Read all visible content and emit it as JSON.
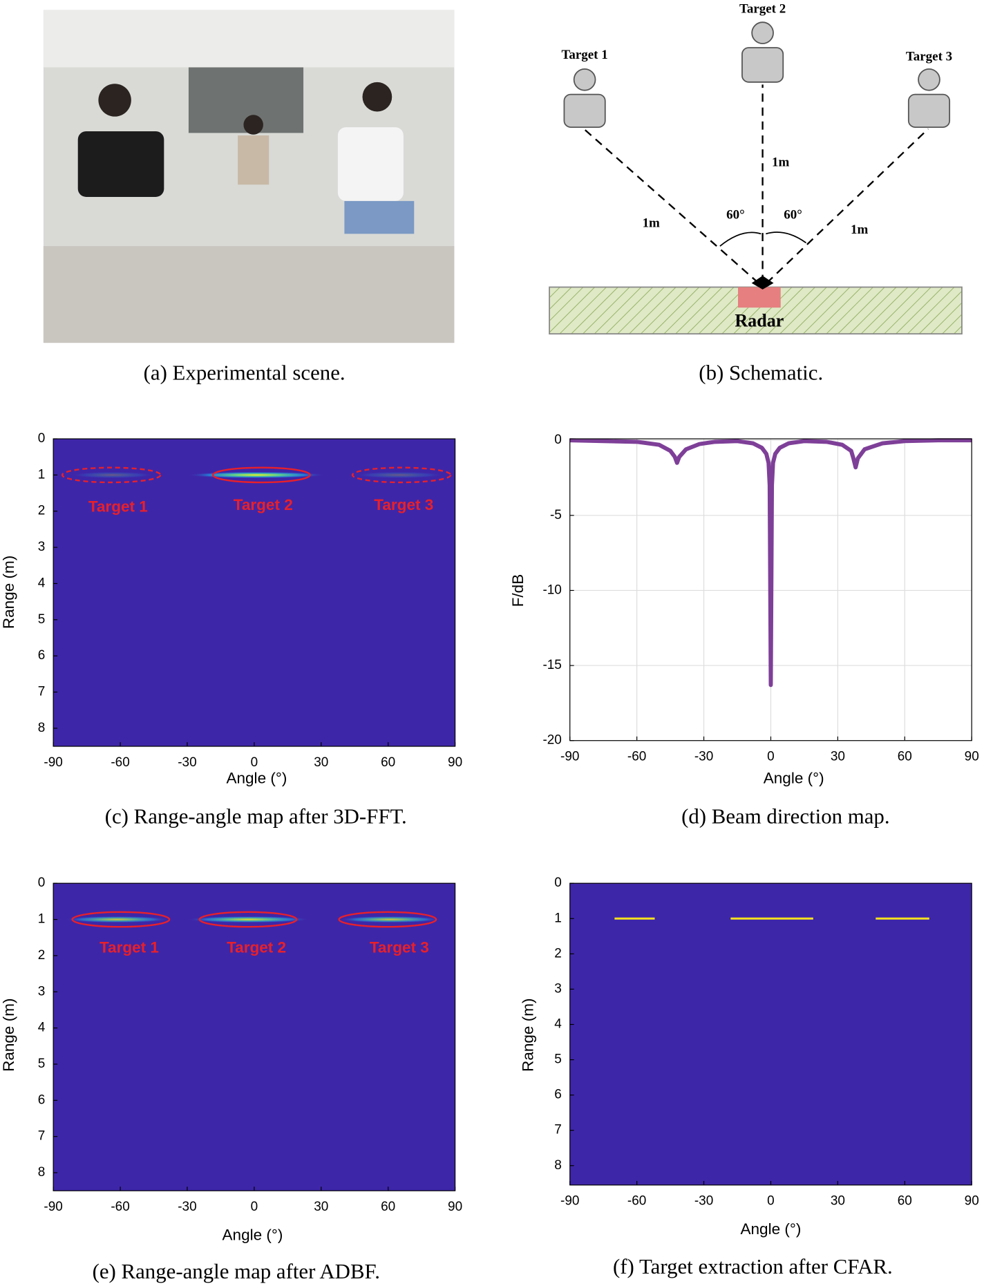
{
  "scene": {
    "caption": "(a) Experimental scene."
  },
  "schematic": {
    "targets": [
      "Target 1",
      "Target 2",
      "Target 3"
    ],
    "distances": [
      "1m",
      "1m",
      "1m"
    ],
    "angles": [
      "60°",
      "60°"
    ],
    "radar": "Radar",
    "caption": "(b) Schematic."
  },
  "chart_data": [
    {
      "type": "heatmap",
      "caption": "(c) Range-angle map after 3D-FFT.",
      "xlabel": "Angle (°)",
      "ylabel": "Range (m)",
      "xlim": [
        -90,
        90
      ],
      "ylim": [
        0,
        8.5
      ],
      "xticks": [
        -90,
        -60,
        -30,
        0,
        30,
        60,
        90
      ],
      "yticks": [
        0,
        1,
        2,
        3,
        4,
        5,
        6,
        7,
        8
      ],
      "background": "#3e26a8",
      "stripes": [
        {
          "x": [
            -30,
            32
          ],
          "y": 1
        },
        {
          "x": [
            -82,
            -45
          ],
          "y": 1
        },
        {
          "x": [
            45,
            85
          ],
          "y": 1
        }
      ],
      "strengths": [
        1,
        0.25,
        0.25
      ],
      "ellipses": [
        {
          "x": [
            -86,
            -42
          ],
          "y": 1,
          "style": "dashed"
        },
        {
          "x": [
            -18.5,
            25
          ],
          "y": 1,
          "style": "solid"
        },
        {
          "x": [
            44,
            88
          ],
          "y": 1,
          "style": "dashed"
        }
      ],
      "annotations": [
        {
          "text": "Target 1",
          "x": -61,
          "y": 1.9
        },
        {
          "text": "Target 2",
          "x": 4,
          "y": 1.85
        },
        {
          "text": "Target 3",
          "x": 67,
          "y": 1.85
        }
      ]
    },
    {
      "type": "line",
      "caption": "(d) Beam direction map.",
      "xlabel": "Angle (°)",
      "ylabel": "F/dB",
      "xlim": [
        -90,
        90
      ],
      "ylim": [
        -20,
        0.1
      ],
      "xticks": [
        -90,
        -60,
        -30,
        0,
        30,
        60,
        90
      ],
      "yticks": [
        0,
        -5,
        -10,
        -15,
        -20
      ],
      "grid": true,
      "color": "#7e3f98",
      "x": [
        -90,
        -75,
        -60,
        -50,
        -45,
        -43,
        -42,
        -41,
        -38,
        -32,
        -25,
        -15,
        -8,
        -4,
        -2,
        -1,
        -0.5,
        0,
        0.5,
        1,
        2,
        4,
        8,
        15,
        25,
        32,
        36,
        37,
        38,
        39,
        42,
        50,
        60,
        75,
        90
      ],
      "values": [
        0,
        -0.05,
        -0.1,
        -0.3,
        -0.7,
        -1.1,
        -1.5,
        -1.1,
        -0.6,
        -0.25,
        -0.1,
        -0.05,
        -0.2,
        -0.5,
        -0.9,
        -1.5,
        -3,
        -16.3,
        -3,
        -1.5,
        -0.9,
        -0.5,
        -0.2,
        -0.05,
        -0.1,
        -0.3,
        -0.7,
        -1.2,
        -1.8,
        -1.2,
        -0.6,
        -0.2,
        -0.05,
        0,
        0
      ]
    },
    {
      "type": "heatmap",
      "caption": "(e) Range-angle map after ADBF.",
      "xlabel": "Angle (°)",
      "ylabel": "Range (m)",
      "xlim": [
        -90,
        90
      ],
      "ylim": [
        0,
        8.5
      ],
      "xticks": [
        -90,
        -60,
        -30,
        0,
        30,
        60,
        90
      ],
      "yticks": [
        0,
        1,
        2,
        3,
        4,
        5,
        6,
        7,
        8
      ],
      "background": "#3e26a8",
      "stripes": [
        {
          "x": [
            -85,
            -38
          ],
          "y": 1
        },
        {
          "x": [
            -30,
            25
          ],
          "y": 1
        },
        {
          "x": [
            38,
            84
          ],
          "y": 1
        }
      ],
      "strengths": [
        0.8,
        0.9,
        0.8
      ],
      "ellipses": [
        {
          "x": [
            -81.5,
            -38
          ],
          "y": 1,
          "style": "solid"
        },
        {
          "x": [
            -24.5,
            19
          ],
          "y": 1,
          "style": "solid"
        },
        {
          "x": [
            38,
            81.5
          ],
          "y": 1,
          "style": "solid"
        }
      ],
      "annotations": [
        {
          "text": "Target 1",
          "x": -56,
          "y": 1.8
        },
        {
          "text": "Target 2",
          "x": 1,
          "y": 1.8
        },
        {
          "text": "Target 3",
          "x": 65,
          "y": 1.8
        }
      ]
    },
    {
      "type": "segments",
      "caption": "(f) Target extraction after CFAR.",
      "xlabel": "Angle (°)",
      "ylabel": "Range (m)",
      "xlim": [
        -90,
        90
      ],
      "ylim": [
        0,
        8.55
      ],
      "xticks": [
        -90,
        -60,
        -30,
        0,
        30,
        60,
        90
      ],
      "yticks": [
        0,
        1,
        2,
        3,
        4,
        5,
        6,
        7,
        8
      ],
      "background": "#3e26a8",
      "color": "#f5e11f",
      "segments": [
        {
          "x": [
            -70,
            -52
          ],
          "y": 1
        },
        {
          "x": [
            -18,
            19
          ],
          "y": 1
        },
        {
          "x": [
            47,
            71
          ],
          "y": 1
        }
      ]
    }
  ]
}
